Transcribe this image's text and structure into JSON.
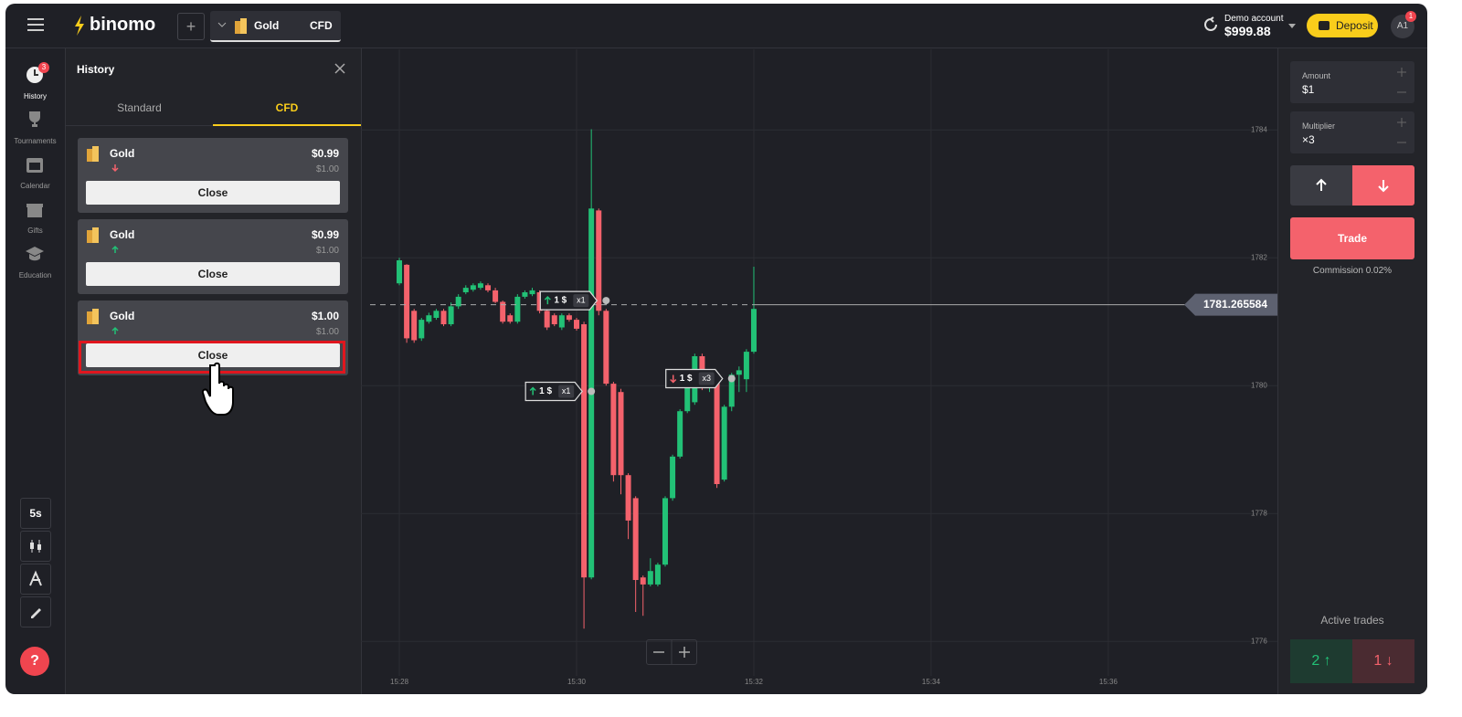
{
  "header": {
    "logo": "binomo",
    "asset": "Gold",
    "asset_type": "CFD",
    "account_label": "Demo account",
    "balance": "$999.88",
    "deposit": "Deposit",
    "avatar": "A1",
    "avatar_badge": "1"
  },
  "sidebar": {
    "items": [
      {
        "label": "History",
        "badge": "3"
      },
      {
        "label": "Tournaments"
      },
      {
        "label": "Calendar"
      },
      {
        "label": "Gifts"
      },
      {
        "label": "Education"
      }
    ],
    "timeframe": "5s",
    "help": "?"
  },
  "history": {
    "title": "History",
    "tabs": [
      "Standard",
      "CFD"
    ],
    "trades": [
      {
        "asset": "Gold",
        "profit": "$0.99",
        "amount": "$1.00",
        "direction": "down",
        "button": "Close"
      },
      {
        "asset": "Gold",
        "profit": "$0.99",
        "amount": "$1.00",
        "direction": "up",
        "button": "Close"
      },
      {
        "asset": "Gold",
        "profit": "$1.00",
        "amount": "$1.00",
        "direction": "up",
        "button": "Close",
        "highlighted": true
      }
    ]
  },
  "chart_data": {
    "type": "candlestick",
    "up_color": "#22c176",
    "down_color": "#f4626c",
    "open": [
      1781.6,
      1781.89,
      1781.17,
      1780.74,
      1781.0,
      1781.06,
      1781.17,
      1780.96,
      1781.24,
      1781.46,
      1781.5,
      1781.53,
      1781.57,
      1781.49,
      1781.31,
      1781.1,
      1781.0,
      1781.39,
      1781.43,
      1781.46,
      1781.17,
      1781.1,
      1780.91,
      1781.1,
      1781.03,
      1780.96,
      1777.0,
      1782.74,
      1781.17,
      1780.03,
      1779.9,
      1778.6,
      1778.24,
      1777.0,
      1776.89,
      1776.89,
      1777.2,
      1778.24,
      1778.89,
      1779.6,
      1779.74,
      1780.46,
      1779.96,
      1780.1,
      1778.53,
      1779.67,
      1780.17,
      1780.1,
      1780.53
    ],
    "high": [
      1782.0,
      1781.9,
      1781.2,
      1781.06,
      1781.14,
      1781.2,
      1781.2,
      1781.3,
      1781.43,
      1781.57,
      1781.6,
      1781.63,
      1781.6,
      1781.53,
      1781.33,
      1781.13,
      1781.43,
      1781.49,
      1781.53,
      1781.49,
      1781.2,
      1781.13,
      1781.13,
      1781.13,
      1781.06,
      1781.0,
      1784.01,
      1782.77,
      1781.2,
      1780.06,
      1779.95,
      1778.63,
      1778.27,
      1777.03,
      1777.3,
      1777.23,
      1778.27,
      1778.92,
      1779.63,
      1780.2,
      1780.5,
      1780.5,
      1780.2,
      1780.13,
      1779.7,
      1780.2,
      1780.3,
      1780.57,
      1781.86
    ],
    "low": [
      1781.57,
      1780.67,
      1780.67,
      1780.7,
      1780.97,
      1781.03,
      1780.93,
      1780.93,
      1781.2,
      1781.43,
      1781.47,
      1781.5,
      1781.46,
      1781.29,
      1780.97,
      1780.97,
      1780.97,
      1781.36,
      1781.4,
      1781.13,
      1780.87,
      1780.93,
      1780.87,
      1781.0,
      1780.86,
      1776.2,
      1776.97,
      1781.1,
      1780.0,
      1778.5,
      1778.3,
      1777.6,
      1776.46,
      1776.4,
      1776.86,
      1776.86,
      1777.17,
      1778.2,
      1778.86,
      1779.57,
      1779.7,
      1779.93,
      1779.9,
      1778.4,
      1778.5,
      1779.6,
      1779.9,
      1779.9,
      1780.5
    ],
    "close": [
      1781.96,
      1780.74,
      1780.71,
      1781.03,
      1781.1,
      1781.17,
      1780.96,
      1781.24,
      1781.39,
      1781.53,
      1781.57,
      1781.6,
      1781.49,
      1781.31,
      1781.0,
      1781.0,
      1781.39,
      1781.46,
      1781.49,
      1781.17,
      1780.91,
      1780.96,
      1781.1,
      1781.03,
      1780.89,
      1777.0,
      1782.77,
      1781.17,
      1780.03,
      1778.6,
      1778.6,
      1777.89,
      1776.96,
      1776.89,
      1777.1,
      1777.2,
      1778.24,
      1778.89,
      1779.6,
      1780.03,
      1780.46,
      1780.03,
      1780.17,
      1778.46,
      1779.67,
      1780.17,
      1780.24,
      1780.53,
      1781.2
    ],
    "ylim": [
      1775.46,
      1785.26
    ],
    "yticks": [
      1776,
      1778,
      1780,
      1782,
      1784
    ],
    "xlim": [
      -5.2,
      118.9
    ],
    "xticks": [
      {
        "value": 0,
        "label": "15:28"
      },
      {
        "value": 24,
        "label": "15:30"
      },
      {
        "value": 48,
        "label": "15:32"
      },
      {
        "value": 72,
        "label": "15:34"
      },
      {
        "value": 96,
        "label": "15:36"
      }
    ],
    "grid": true,
    "current_price": 1781.265584,
    "markers": [
      {
        "at": 28,
        "price": 1781.33,
        "direction": "up",
        "amount": "1 $",
        "multiplier": "x1"
      },
      {
        "at": 26,
        "price": 1779.91,
        "direction": "up",
        "amount": "1 $",
        "multiplier": "x1"
      },
      {
        "at": 45,
        "price": 1780.11,
        "direction": "down",
        "amount": "1 $",
        "multiplier": "x3"
      }
    ]
  },
  "trade_panel": {
    "amount_label": "Amount",
    "amount": "$1",
    "multiplier_label": "Multiplier",
    "multiplier": "×3",
    "trade": "Trade",
    "commission": "Commission 0.02%",
    "active_label": "Active trades",
    "active_up": "2",
    "active_down": "1"
  }
}
